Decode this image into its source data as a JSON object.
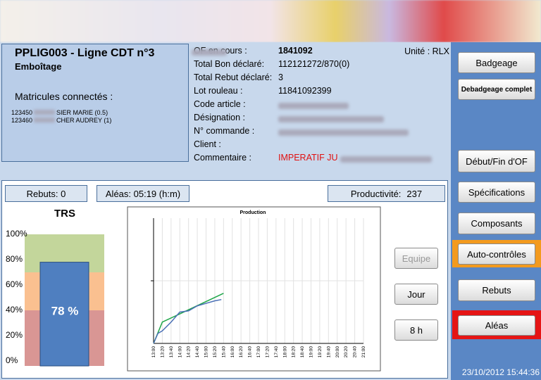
{
  "header": {
    "line_title": "PPLIG003 - Ligne CDT n°3",
    "subtitle": "Emboîtage",
    "matricules_label": "Matricules connectés :",
    "operators": [
      {
        "id": "123450",
        "name": "SIER MARIE (0.5)"
      },
      {
        "id": "123460",
        "name": "CHER AUDREY (1)"
      }
    ]
  },
  "info": {
    "unite": "Unité : RLX",
    "rows": [
      {
        "label": "OF en cours :",
        "value": "1841092"
      },
      {
        "label": "Total Bon déclaré:",
        "value": "112121272/870(0)"
      },
      {
        "label": "Total Rebut déclaré:",
        "value": "3"
      },
      {
        "label": "Lot rouleau :",
        "value": "11841092399"
      },
      {
        "label": "Code article :"
      },
      {
        "label": "Désignation :"
      },
      {
        "label": "N° commande :"
      },
      {
        "label": "Client :"
      },
      {
        "label": "Commentaire :",
        "value": "IMPERATIF JU"
      }
    ]
  },
  "counters": {
    "rebuts": "Rebuts: 0",
    "aleas": "Aléas: 05:19 (h:m)",
    "productivite_label": "Productivité:",
    "productivite": "237"
  },
  "trs": {
    "type": "bar",
    "title": "TRS",
    "value": 78,
    "value_label": "78 %",
    "color": "#4f7fc0",
    "ylim": [
      0,
      100
    ],
    "yticks": [
      {
        "value": 100,
        "label": "100%"
      },
      {
        "value": 80,
        "label": "80%"
      },
      {
        "value": 60,
        "label": "60%"
      },
      {
        "value": 40,
        "label": "40%"
      },
      {
        "value": 20,
        "label": "20%"
      },
      {
        "value": 0,
        "label": "0%"
      }
    ],
    "bands": [
      {
        "from": 0,
        "to": 40,
        "color": "#d99694"
      },
      {
        "from": 40,
        "to": 70,
        "color": "#fac090"
      },
      {
        "from": 70,
        "to": 100,
        "color": "#c3d69b"
      }
    ]
  },
  "production": {
    "type": "line",
    "title": "Production",
    "xlim": [
      "13:00",
      "21:00"
    ],
    "xticks": [
      "13:00",
      "13:20",
      "13:40",
      "14:00",
      "14:20",
      "14:40",
      "15:00",
      "15:20",
      "15:40",
      "16:00",
      "16:20",
      "16:40",
      "17:00",
      "17:20",
      "17:40",
      "18:00",
      "18:20",
      "18:40",
      "19:00",
      "19:20",
      "19:40",
      "20:00",
      "20:20",
      "20:40",
      "21:00"
    ],
    "ylim": [
      0,
      100
    ],
    "yticks": [
      50
    ],
    "series": [
      {
        "color": "#1fa64a",
        "x": [
          "13:00",
          "13:20",
          "15:40"
        ],
        "values": [
          0,
          17,
          40
        ]
      },
      {
        "color": "#4a6fb5",
        "x": [
          "13:00",
          "13:10",
          "13:20",
          "13:40",
          "14:00",
          "14:20",
          "14:40",
          "15:00",
          "15:20",
          "15:35"
        ],
        "values": [
          0,
          8,
          10,
          17,
          25,
          26,
          30,
          32,
          34,
          35
        ]
      }
    ]
  },
  "buttons": {
    "equipe": "Equipe",
    "jour": "Jour",
    "h8": "8 h"
  },
  "sidebar": {
    "badgeage": "Badgeage",
    "debadgeage": "Debadgeage complet",
    "debut_fin": "Début/Fin d'OF",
    "specifications": "Spécifications",
    "composants": "Composants",
    "auto_controles": "Auto-contrôles",
    "rebuts": "Rebuts",
    "aleas": "Aléas",
    "datetime": "23/10/2012 15:44:36"
  }
}
